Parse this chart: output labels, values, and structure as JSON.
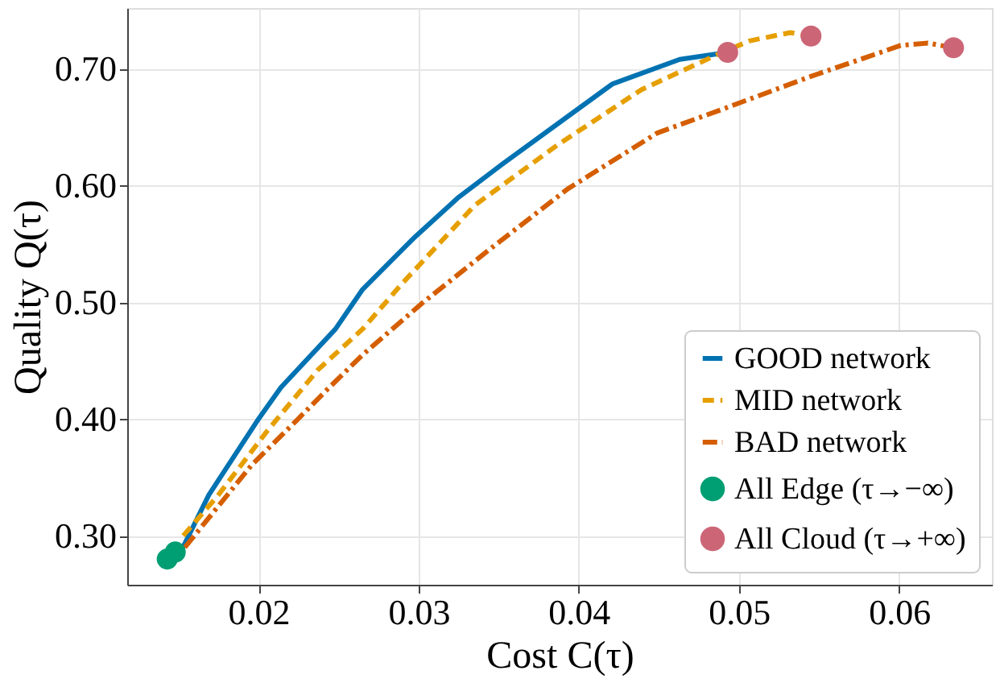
{
  "chart_data": {
    "type": "line",
    "xlabel": "Cost C(τ)",
    "ylabel": "Quality Q(τ)",
    "xlim": [
      0.0118,
      0.0658
    ],
    "ylim": [
      0.258,
      0.752
    ],
    "xticks": [
      0.02,
      0.03,
      0.04,
      0.05,
      0.06
    ],
    "yticks": [
      {
        "value": 0.3,
        "label": "0.30"
      },
      {
        "value": 0.4,
        "label": "0.40"
      },
      {
        "value": 0.5,
        "label": "0.50"
      },
      {
        "value": 0.6,
        "label": "0.60"
      },
      {
        "value": 0.7,
        "label": "0.70"
      }
    ],
    "grid": true,
    "legend": "bottom right",
    "series": [
      {
        "name": "GOOD network",
        "type": "line",
        "line_style": "solid",
        "color": "#0072b2",
        "x": [
          0.0151,
          0.0169,
          0.02,
          0.0214,
          0.0248,
          0.0265,
          0.0297,
          0.0325,
          0.0352,
          0.0393,
          0.0421,
          0.0463,
          0.0493
        ],
        "values": [
          0.285,
          0.335,
          0.4,
          0.427,
          0.477,
          0.511,
          0.555,
          0.59,
          0.618,
          0.659,
          0.687,
          0.708,
          0.714
        ]
      },
      {
        "name": "MID network",
        "type": "line",
        "line_style": "dashed",
        "color": "#e69f00",
        "x": [
          0.0153,
          0.0175,
          0.0205,
          0.0237,
          0.0265,
          0.0289,
          0.0335,
          0.0387,
          0.0439,
          0.0491,
          0.0507,
          0.0532,
          0.0545
        ],
        "values": [
          0.3,
          0.335,
          0.389,
          0.442,
          0.477,
          0.515,
          0.583,
          0.635,
          0.682,
          0.715,
          0.724,
          0.731,
          0.728
        ]
      },
      {
        "name": "BAD network",
        "type": "line",
        "line_style": "dashdot",
        "color": "#d55e00",
        "x": [
          0.0154,
          0.0196,
          0.0224,
          0.0242,
          0.0265,
          0.0302,
          0.0345,
          0.0393,
          0.0449,
          0.0491,
          0.0546,
          0.058,
          0.0601,
          0.0618,
          0.0634
        ],
        "values": [
          0.29,
          0.361,
          0.399,
          0.424,
          0.455,
          0.499,
          0.546,
          0.597,
          0.645,
          0.666,
          0.694,
          0.71,
          0.72,
          0.722,
          0.718
        ]
      },
      {
        "name": "All Edge (τ→−∞)",
        "type": "scatter",
        "marker": "circle",
        "color": "#009e73",
        "x": [
          0.0143,
          0.0148
        ],
        "values": [
          0.28,
          0.286
        ]
      },
      {
        "name": "All Cloud (τ→+∞)",
        "type": "scatter",
        "marker": "circle",
        "color": "#cc6677",
        "x": [
          0.0493,
          0.0545,
          0.0634
        ],
        "values": [
          0.714,
          0.728,
          0.718
        ]
      }
    ]
  }
}
